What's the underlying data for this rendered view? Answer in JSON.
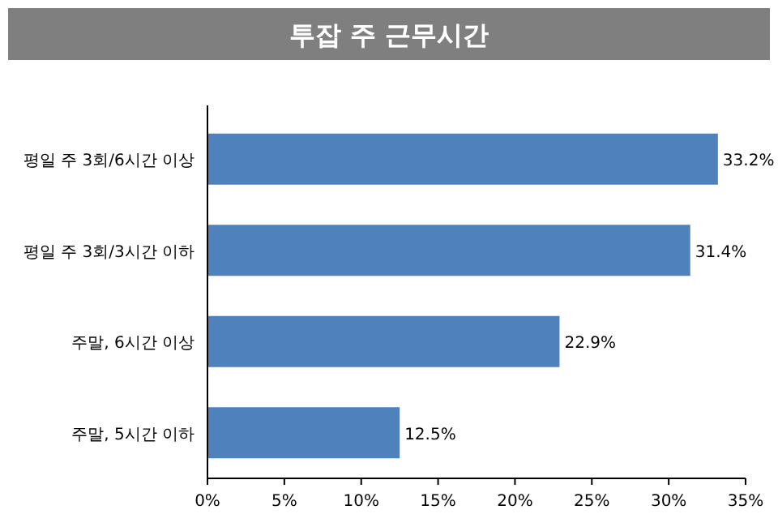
{
  "chart_data": {
    "type": "bar",
    "orientation": "horizontal",
    "title": "투잡 주 근무시간",
    "categories": [
      "평일 주 3회/6시간 이상",
      "평일 주 3회/3시간 이하",
      "주말, 6시간 이상",
      "주말, 5시간 이하"
    ],
    "values": [
      33.2,
      31.4,
      22.9,
      12.5
    ],
    "color": "#4f81bd",
    "value_labels": [
      "33.2%",
      "31.4%",
      "22.9%",
      "12.5%"
    ],
    "xlim": [
      0,
      35
    ],
    "xticks": [
      {
        "value": 0,
        "label": "0%"
      },
      {
        "value": 5,
        "label": "5%"
      },
      {
        "value": 10,
        "label": "10%"
      },
      {
        "value": 15,
        "label": "15%"
      },
      {
        "value": 20,
        "label": "20%"
      },
      {
        "value": 25,
        "label": "25%"
      },
      {
        "value": 30,
        "label": "30%"
      },
      {
        "value": 35,
        "label": "35%"
      }
    ]
  }
}
